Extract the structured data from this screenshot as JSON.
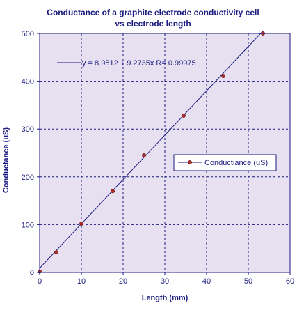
{
  "chart_data": {
    "type": "scatter",
    "title": "Conductance of a graphite electrode conductivity cell",
    "subtitle": "vs electrode length",
    "xlabel": "Length (mm)",
    "ylabel": "Conductance (uS)",
    "xlim": [
      0,
      60
    ],
    "ylim": [
      0,
      500
    ],
    "xticks": [
      "0",
      "10",
      "20",
      "30",
      "40",
      "50",
      "60"
    ],
    "yticks": [
      "0",
      "100",
      "200",
      "300",
      "400",
      "500"
    ],
    "grid": true,
    "legend_position": "right",
    "series": [
      {
        "name": "Conductiance (uS)",
        "marker_color": "#b03030",
        "line_color": "#1a1a80",
        "x": [
          0,
          4,
          10,
          17.5,
          25,
          34.5,
          44,
          53.5
        ],
        "y": [
          2,
          42,
          102,
          170,
          245,
          328,
          411,
          500
        ]
      }
    ],
    "fit": {
      "label": "y = 8.9512 + 9.2735x   R= 0.99975",
      "intercept": 8.9512,
      "slope": 9.2735,
      "x_range": [
        0,
        53.5
      ],
      "color": "#1a1a80"
    },
    "colors": {
      "plot_background": "#e6e0f0",
      "grid": "#1a1a80",
      "text": "#1a1a80"
    }
  }
}
